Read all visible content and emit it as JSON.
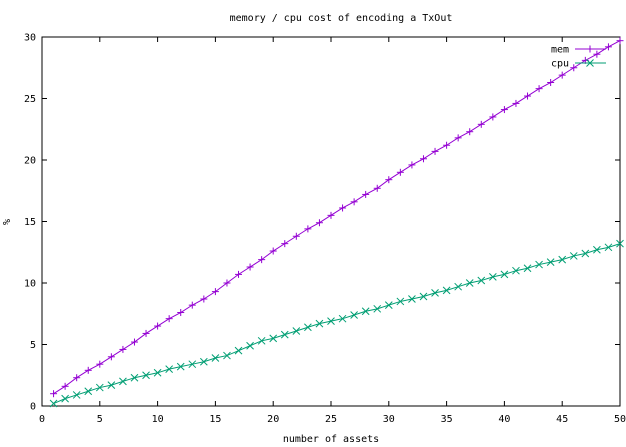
{
  "chart_data": {
    "type": "line",
    "title": "memory / cpu cost of encoding a TxOut",
    "xlabel": "number of assets",
    "ylabel": "%",
    "xlim": [
      0,
      50
    ],
    "ylim": [
      0,
      30
    ],
    "xticks": [
      "0",
      "5",
      "10",
      "15",
      "20",
      "25",
      "30",
      "35",
      "40",
      "45",
      "50"
    ],
    "yticks": [
      "0",
      "5",
      "10",
      "15",
      "20",
      "25",
      "30"
    ],
    "grid": false,
    "legend_position": "top-right",
    "x": [
      1,
      2,
      3,
      4,
      5,
      6,
      7,
      8,
      9,
      10,
      11,
      12,
      13,
      14,
      15,
      16,
      17,
      18,
      19,
      20,
      21,
      22,
      23,
      24,
      25,
      26,
      27,
      28,
      29,
      30,
      31,
      32,
      33,
      34,
      35,
      36,
      37,
      38,
      39,
      40,
      41,
      42,
      43,
      44,
      45,
      46,
      47,
      48,
      49,
      50
    ],
    "series": [
      {
        "name": "mem",
        "color": "#9400d3",
        "marker": "plus",
        "values": [
          1.0,
          1.6,
          2.3,
          2.9,
          3.4,
          4.0,
          4.6,
          5.2,
          5.9,
          6.5,
          7.1,
          7.6,
          8.2,
          8.7,
          9.3,
          10.0,
          10.7,
          11.3,
          11.9,
          12.6,
          13.2,
          13.8,
          14.4,
          14.9,
          15.5,
          16.1,
          16.6,
          17.2,
          17.7,
          18.4,
          19.0,
          19.6,
          20.1,
          20.7,
          21.2,
          21.8,
          22.3,
          22.9,
          23.5,
          24.1,
          24.6,
          25.2,
          25.8,
          26.3,
          26.9,
          27.5,
          28.1,
          28.6,
          29.2,
          29.7
        ]
      },
      {
        "name": "cpu",
        "color": "#009e73",
        "marker": "x",
        "values": [
          0.2,
          0.6,
          0.9,
          1.2,
          1.5,
          1.7,
          2.0,
          2.3,
          2.5,
          2.7,
          3.0,
          3.2,
          3.4,
          3.6,
          3.9,
          4.1,
          4.5,
          4.9,
          5.3,
          5.5,
          5.8,
          6.1,
          6.4,
          6.7,
          6.9,
          7.1,
          7.4,
          7.7,
          7.9,
          8.2,
          8.5,
          8.7,
          8.9,
          9.2,
          9.4,
          9.7,
          10.0,
          10.2,
          10.5,
          10.7,
          11.0,
          11.2,
          11.5,
          11.7,
          11.9,
          12.2,
          12.4,
          12.7,
          12.9,
          13.2
        ]
      }
    ]
  }
}
